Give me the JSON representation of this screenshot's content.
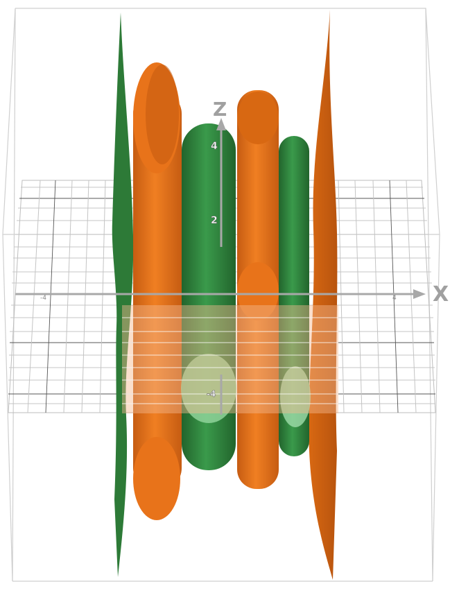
{
  "axes": {
    "x_label": "X",
    "z_label": "Z",
    "z_ticks": [
      "4",
      "2",
      "-4"
    ],
    "x_ticks": [
      "-4",
      "4"
    ]
  },
  "colors": {
    "green_surface": "#2e7d3a",
    "green_light": "#4caf60",
    "orange_surface": "#e8731a",
    "orange_dark": "#c25a10",
    "axis_gray": "#a8a8a8",
    "grid_gray": "#bdbdbd",
    "box_gray": "#c8c8c8",
    "plane_tint": "#f4b98e"
  }
}
